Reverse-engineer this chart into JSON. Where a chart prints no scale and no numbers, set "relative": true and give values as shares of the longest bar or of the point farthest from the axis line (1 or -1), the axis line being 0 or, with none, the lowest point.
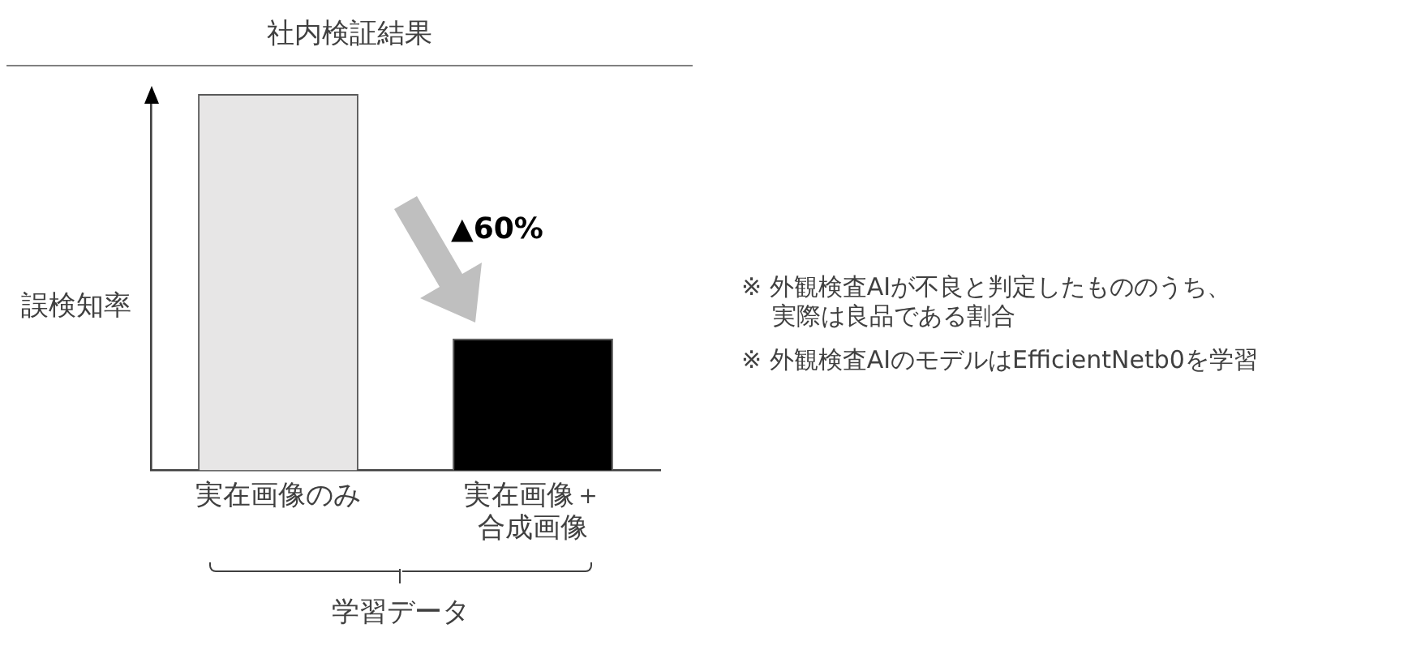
{
  "chart_data": {
    "type": "bar",
    "title": "社内検証結果",
    "xlabel": "学習データ",
    "ylabel": "誤検知率",
    "categories": [
      "実在画像のみ",
      "実在画像＋合成画像"
    ],
    "relative": true,
    "values": [
      1,
      0.35
    ],
    "colors": [
      "#e7e6e6",
      "#000000"
    ],
    "annotations": [
      "▲60%",
      "※ 外観検査AIが不良と判定したもののうち、実際は良品である割合",
      "※ 外観検査AIのモデルはEfficientNetb0を学習"
    ]
  }
}
